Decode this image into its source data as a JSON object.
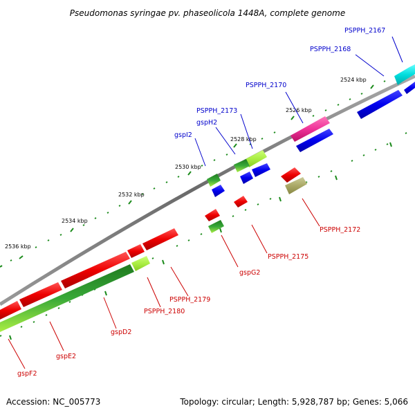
{
  "title": "Pseudomonas syringae pv. phaseolicola 1448A, complete genome",
  "footer": {
    "accession": "Accession: NC_005773",
    "summary": "Topology: circular; Length: 5,928,787 bp; Genes: 5,066"
  },
  "colors": {
    "backbone": "#7a7a7a",
    "tick": "#1a8a1a",
    "label_forward": "#0000cc",
    "label_reverse": "#cc0000",
    "gene_red": "#ee0000",
    "gene_blue": "#0000ee",
    "gene_cyan": "#00dddd",
    "gene_magenta": "#ee3399",
    "gene_darkgreen": "#2e9a2e",
    "gene_lightgreen": "#aaee44",
    "gene_olive": "#aaa866"
  },
  "scale": {
    "unit": "kbp",
    "major_ticks": [
      {
        "kbp": 2524,
        "label": "2524 kbp"
      },
      {
        "kbp": 2526,
        "label": "2526 kbp"
      },
      {
        "kbp": 2528,
        "label": "2528 kbp"
      },
      {
        "kbp": 2530,
        "label": "2530 kbp"
      },
      {
        "kbp": 2532,
        "label": "2532 kbp"
      },
      {
        "kbp": 2534,
        "label": "2534 kbp"
      },
      {
        "kbp": 2536,
        "label": "2536 kbp"
      }
    ]
  },
  "labeled_genes": [
    {
      "name": "PSPPH_2167",
      "strand": "forward"
    },
    {
      "name": "PSPPH_2168",
      "strand": "forward"
    },
    {
      "name": "PSPPH_2170",
      "strand": "forward"
    },
    {
      "name": "PSPPH_2173",
      "strand": "forward"
    },
    {
      "name": "gspH2",
      "strand": "forward"
    },
    {
      "name": "gspI2",
      "strand": "forward"
    },
    {
      "name": "PSPPH_2172",
      "strand": "reverse"
    },
    {
      "name": "PSPPH_2175",
      "strand": "reverse"
    },
    {
      "name": "gspG2",
      "strand": "reverse"
    },
    {
      "name": "PSPPH_2179",
      "strand": "reverse"
    },
    {
      "name": "PSPPH_2180",
      "strand": "reverse"
    },
    {
      "name": "gspD2",
      "strand": "reverse"
    },
    {
      "name": "gspE2",
      "strand": "reverse"
    },
    {
      "name": "gspF2",
      "strand": "reverse"
    }
  ]
}
